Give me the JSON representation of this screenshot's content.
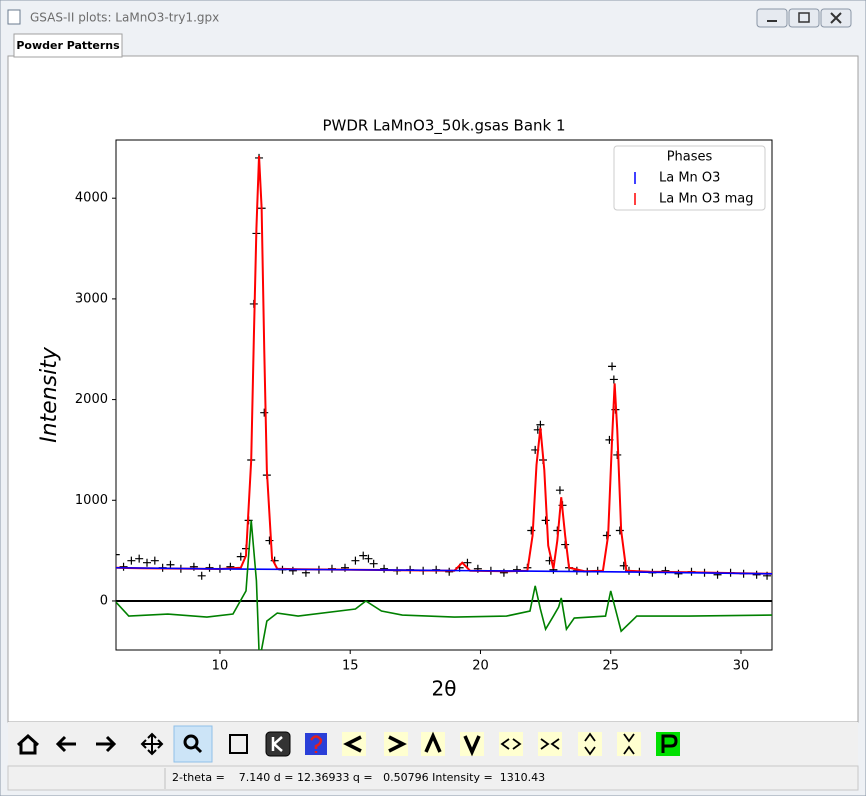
{
  "window": {
    "title": "GSAS-II plots: LaMnO3-try1.gpx",
    "tab": "Powder Patterns"
  },
  "chart_data": {
    "type": "line",
    "title": "PWDR LaMnO3_50k.gsas Bank 1",
    "xlabel": "2θ",
    "ylabel": "Intensity",
    "xlim": [
      6.01,
      31.19
    ],
    "ylim": [
      -487,
      4578
    ],
    "xticks": [
      10,
      15,
      20,
      25,
      30
    ],
    "yticks": [
      0,
      1000,
      2000,
      3000,
      4000
    ],
    "hline": 0,
    "series": [
      {
        "color": "#000000",
        "marker": "+",
        "x": [
          6.0,
          6.3,
          6.6,
          6.9,
          7.2,
          7.5,
          7.8,
          8.1,
          8.5,
          9,
          9.3,
          9.6,
          10,
          10.4,
          10.8,
          11.0,
          11.1,
          11.2,
          11.3,
          11.4,
          11.5,
          11.6,
          11.7,
          11.8,
          11.9,
          12.1,
          12.4,
          12.8,
          13.3,
          13.8,
          14.3,
          14.8,
          15.2,
          15.5,
          15.7,
          15.9,
          16.3,
          16.8,
          17.3,
          17.8,
          18.3,
          18.8,
          19.2,
          19.5,
          19.9,
          20.4,
          20.9,
          21.4,
          21.8,
          21.95,
          22.1,
          22.2,
          22.3,
          22.4,
          22.5,
          22.65,
          22.8,
          22.95,
          23.05,
          23.15,
          23.25,
          23.4,
          23.7,
          24.1,
          24.5,
          24.85,
          24.95,
          25.05,
          25.12,
          25.18,
          25.25,
          25.35,
          25.5,
          25.7,
          26.1,
          26.6,
          27.1,
          27.6,
          28.1,
          28.6,
          29.1,
          29.6,
          30.1,
          30.6,
          31.0
        ],
        "values": [
          460,
          340,
          400,
          420,
          380,
          400,
          330,
          360,
          320,
          340,
          250,
          330,
          320,
          340,
          440,
          520,
          800,
          1400,
          2950,
          3650,
          4400,
          3900,
          1870,
          1250,
          600,
          400,
          310,
          300,
          280,
          310,
          320,
          330,
          400,
          450,
          420,
          370,
          320,
          300,
          310,
          300,
          310,
          290,
          330,
          380,
          320,
          300,
          280,
          310,
          330,
          700,
          1500,
          1700,
          1750,
          1400,
          800,
          400,
          310,
          700,
          1100,
          950,
          560,
          330,
          300,
          290,
          300,
          650,
          1600,
          2330,
          2200,
          1900,
          1450,
          700,
          350,
          300,
          290,
          280,
          300,
          270,
          290,
          280,
          260,
          280,
          270,
          260,
          250
        ]
      },
      {
        "color": "#ff0000",
        "x": [
          6,
          7,
          8,
          9,
          10,
          10.8,
          11.0,
          11.2,
          11.3,
          11.4,
          11.5,
          11.6,
          11.7,
          11.8,
          12.0,
          12.2,
          13,
          15,
          17,
          19,
          19.3,
          19.6,
          21,
          21.8,
          22.0,
          22.15,
          22.3,
          22.45,
          22.6,
          22.8,
          22.95,
          23.1,
          23.25,
          23.4,
          24,
          24.7,
          24.9,
          25.05,
          25.15,
          25.25,
          25.4,
          25.6,
          26.5,
          28,
          30,
          31.2
        ],
        "values": [
          330,
          325,
          322,
          320,
          318,
          330,
          450,
          1400,
          2600,
          3700,
          4420,
          3900,
          2500,
          1300,
          420,
          320,
          315,
          310,
          305,
          300,
          380,
          300,
          295,
          300,
          650,
          1350,
          1720,
          1300,
          550,
          320,
          600,
          1030,
          650,
          330,
          295,
          300,
          650,
          1600,
          2160,
          1700,
          700,
          300,
          290,
          285,
          275,
          270
        ]
      },
      {
        "color": "#0000ff",
        "x": [
          6,
          10,
          15,
          20,
          25,
          31.2
        ],
        "values": [
          330,
          318,
          310,
          300,
          290,
          270
        ]
      },
      {
        "color": "#008000",
        "x": [
          6,
          6.5,
          8,
          9.5,
          10.5,
          11.0,
          11.2,
          11.4,
          11.5,
          11.6,
          11.8,
          12.2,
          13,
          15.2,
          15.6,
          16.2,
          17,
          19,
          21,
          21.9,
          22.1,
          22.3,
          22.5,
          22.8,
          23.0,
          23.1,
          23.3,
          23.6,
          24.8,
          25.0,
          25.2,
          25.4,
          26,
          28,
          31.2
        ],
        "values": [
          -10,
          -150,
          -130,
          -160,
          -130,
          100,
          800,
          200,
          -500,
          -480,
          -200,
          -120,
          -150,
          -80,
          0,
          -100,
          -140,
          -160,
          -150,
          -100,
          150,
          -80,
          -280,
          -150,
          -60,
          30,
          -280,
          -170,
          -150,
          100,
          -100,
          -300,
          -150,
          -150,
          -140
        ]
      }
    ],
    "legend": {
      "title": "Phases",
      "loc": "upper right",
      "entries": [
        {
          "name": "La Mn O3",
          "color": "#0000ff"
        },
        {
          "name": "La Mn O3 mag",
          "color": "#ff0000"
        }
      ]
    }
  },
  "status_bar": "2-theta =    7.140 d = 12.36933 q =   0.50796 Intensity =  1310.43"
}
